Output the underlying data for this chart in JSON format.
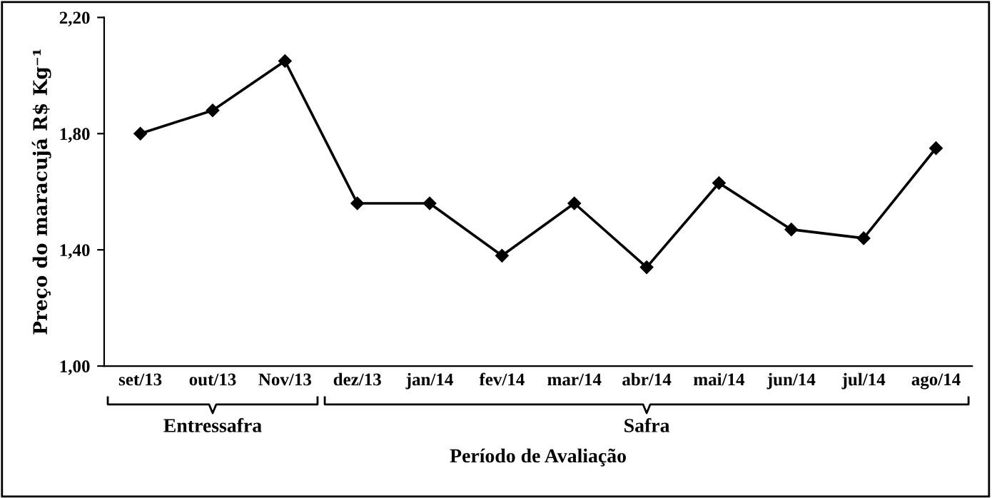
{
  "chart_data": {
    "type": "line",
    "xlabel": "Período de Avaliação",
    "ylabel": "Preço do maracujá R$ Kg⁻¹",
    "categories": [
      "set/13",
      "out/13",
      "Nov/13",
      "dez/13",
      "jan/14",
      "fev/14",
      "mar/14",
      "abr/14",
      "mai/14",
      "jun/14",
      "jul/14",
      "ago/14"
    ],
    "series": [
      {
        "color": "#000000",
        "values": [
          1.8,
          1.88,
          2.05,
          1.56,
          1.56,
          1.38,
          1.56,
          1.34,
          1.63,
          1.47,
          1.44,
          1.75
        ]
      }
    ],
    "ylim": [
      1.0,
      2.2
    ],
    "yticks": [
      {
        "value": 1.0,
        "label": "1,00"
      },
      {
        "value": 1.4,
        "label": "1,40"
      },
      {
        "value": 1.8,
        "label": "1,80"
      },
      {
        "value": 2.2,
        "label": "2,20"
      }
    ],
    "marker": "diamond",
    "line_style": "solid",
    "grid": false,
    "legend": false,
    "annotations": [
      "Entressafra",
      "Safra"
    ]
  }
}
